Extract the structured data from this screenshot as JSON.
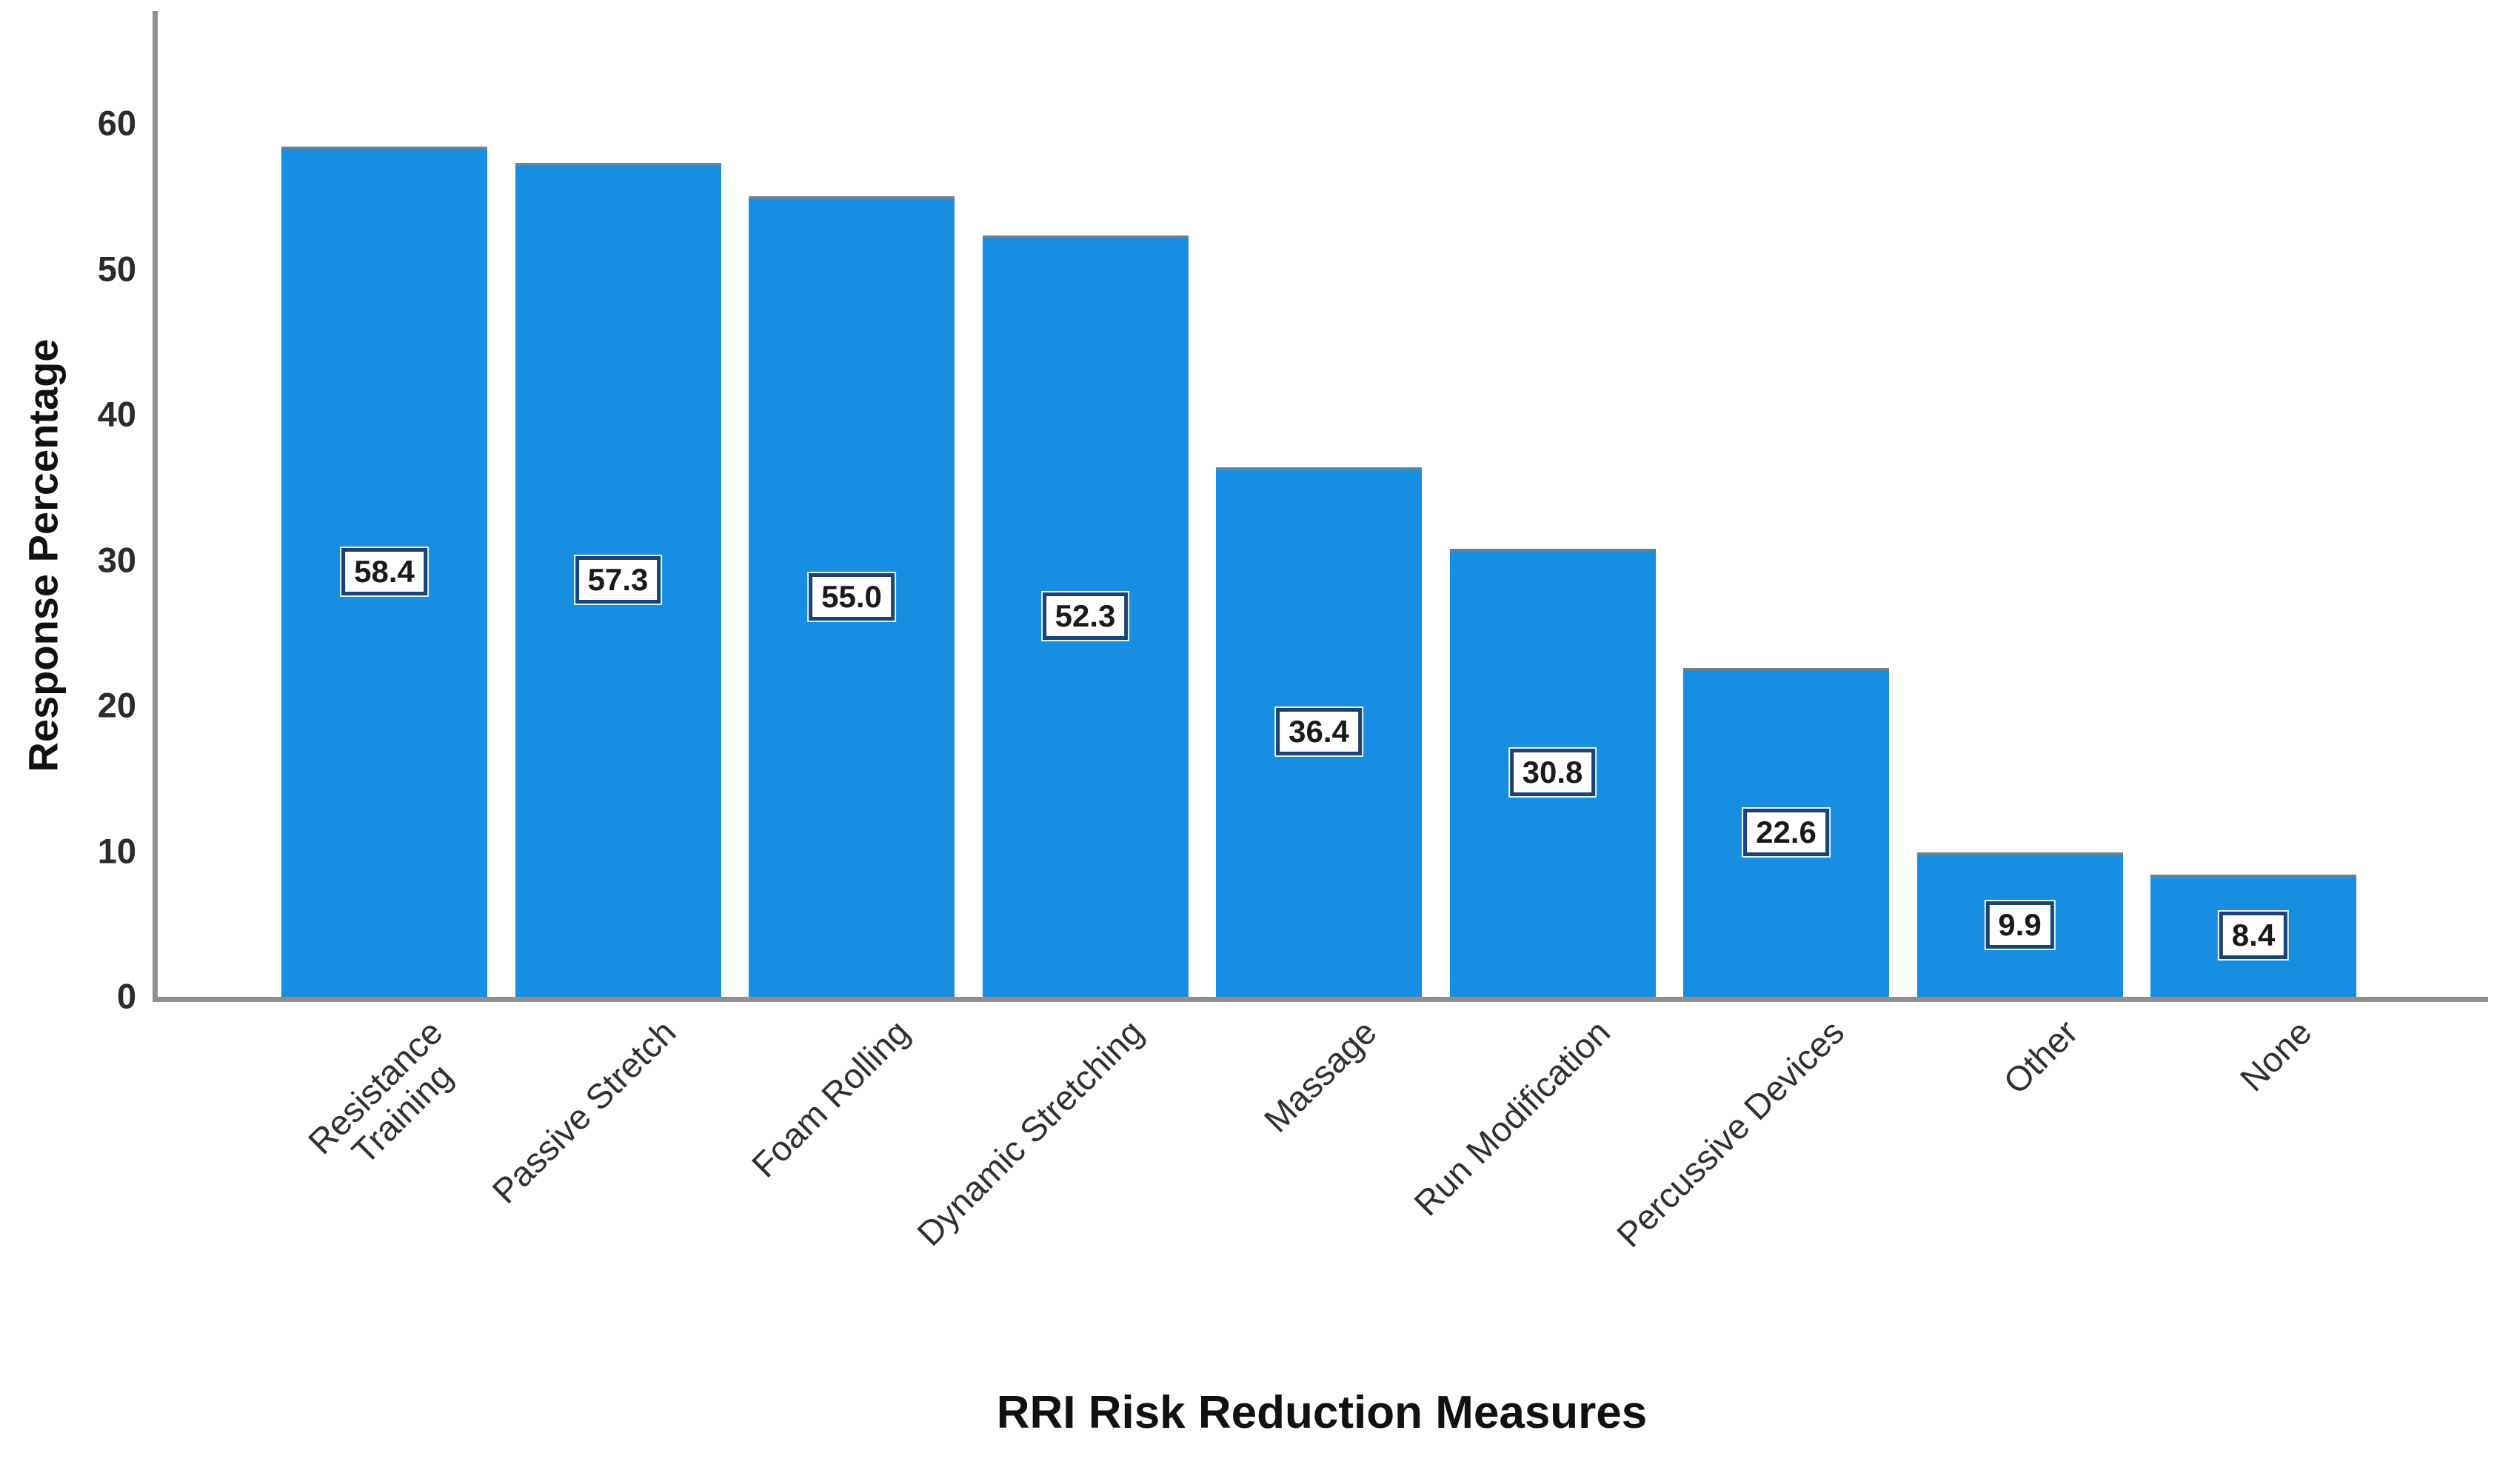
{
  "chart_data": {
    "type": "bar",
    "title": "",
    "xlabel": "RRI Risk Reduction Measures",
    "ylabel": "Response Percentage",
    "categories": [
      "Resistance\nTraining",
      "Passive Stretch",
      "Foam Rolling",
      "Dynamic Stretching",
      "Massage",
      "Run Modification",
      "Percussive Devices",
      "Other",
      "None"
    ],
    "values": [
      58.4,
      57.3,
      55.0,
      52.3,
      36.4,
      30.8,
      22.6,
      9.9,
      8.4
    ],
    "data_labels": [
      "58.4",
      "57.3",
      "55.0",
      "52.3",
      "36.4",
      "30.8",
      "22.6",
      "9.9",
      "8.4"
    ],
    "yticks": [
      0,
      10,
      20,
      30,
      40,
      50,
      60
    ],
    "ylim": [
      0,
      60
    ],
    "grid": false,
    "legend": null,
    "bar_color": "#178ee2",
    "bar_top_edge_color": "#6f7f8a",
    "axis_color": "#8f8f8f",
    "label_box_border_color": "#1b4377",
    "label_box_background": "#ffffff",
    "tick_label_color": "#2b2b2b",
    "category_label_color": "#303030"
  }
}
